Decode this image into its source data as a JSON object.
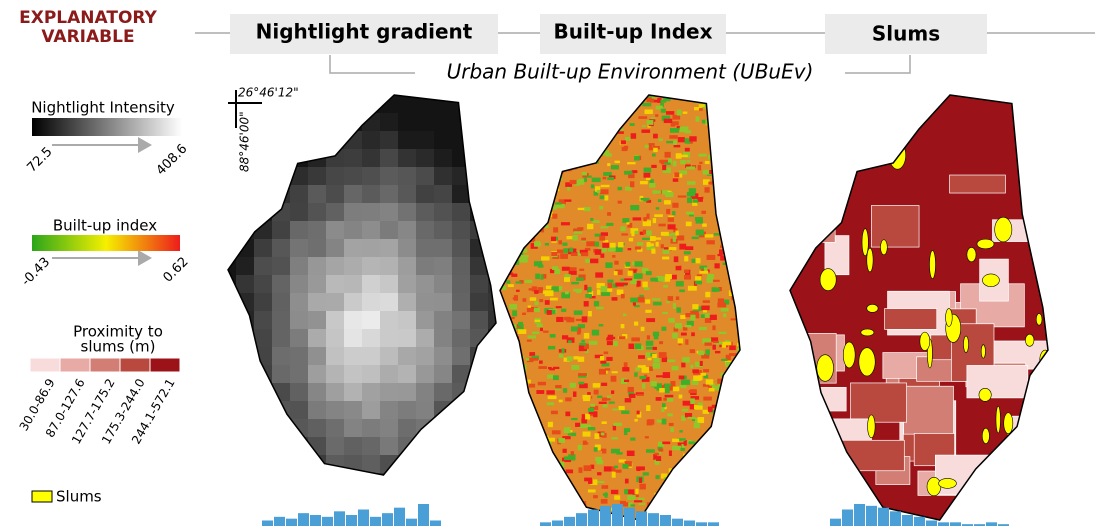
{
  "header": {
    "label_lines": [
      "EXPLANATORY",
      "VARIABLE"
    ],
    "panels": [
      "Nightlight gradient",
      "Built-up Index",
      "Slums"
    ],
    "group_label": "Urban Built-up Environment (UBuEv)"
  },
  "legend": {
    "nightlight": {
      "title": "Nightlight Intensity",
      "min": "72.5",
      "max": "408.6"
    },
    "builtup": {
      "title": "Built-up index",
      "min": "-0.43",
      "max": "0.62"
    },
    "proximity": {
      "title_lines": [
        "Proximity to",
        "slums (m)"
      ],
      "classes": [
        {
          "label": "30.0-86.9",
          "color": "#f8dcdc"
        },
        {
          "label": "87.0-127.6",
          "color": "#e8aaa5"
        },
        {
          "label": "127.7-175.2",
          "color": "#d27e75"
        },
        {
          "label": "175.3-244.0",
          "color": "#b9483f"
        },
        {
          "label": "244.1-572.1",
          "color": "#9b1319"
        }
      ]
    },
    "slums": {
      "label": "Slums",
      "color": "#ffff00"
    }
  },
  "map": {
    "lat": "26°46'12\"",
    "lon": "88°46'00\""
  },
  "histograms": [
    {
      "color": "#4a9fd6",
      "values": [
        3,
        5,
        4,
        7,
        6,
        5,
        8,
        6,
        9,
        5,
        7,
        10,
        4,
        12,
        3
      ]
    },
    {
      "color": "#4a9fd6",
      "values": [
        2,
        3,
        5,
        7,
        9,
        11,
        12,
        10,
        8,
        7,
        6,
        4,
        3,
        2,
        2
      ]
    },
    {
      "color": "#4a9fd6",
      "values": [
        4,
        9,
        12,
        11,
        10,
        8,
        6,
        5,
        3,
        2,
        2,
        1,
        1,
        2,
        1
      ]
    }
  ]
}
